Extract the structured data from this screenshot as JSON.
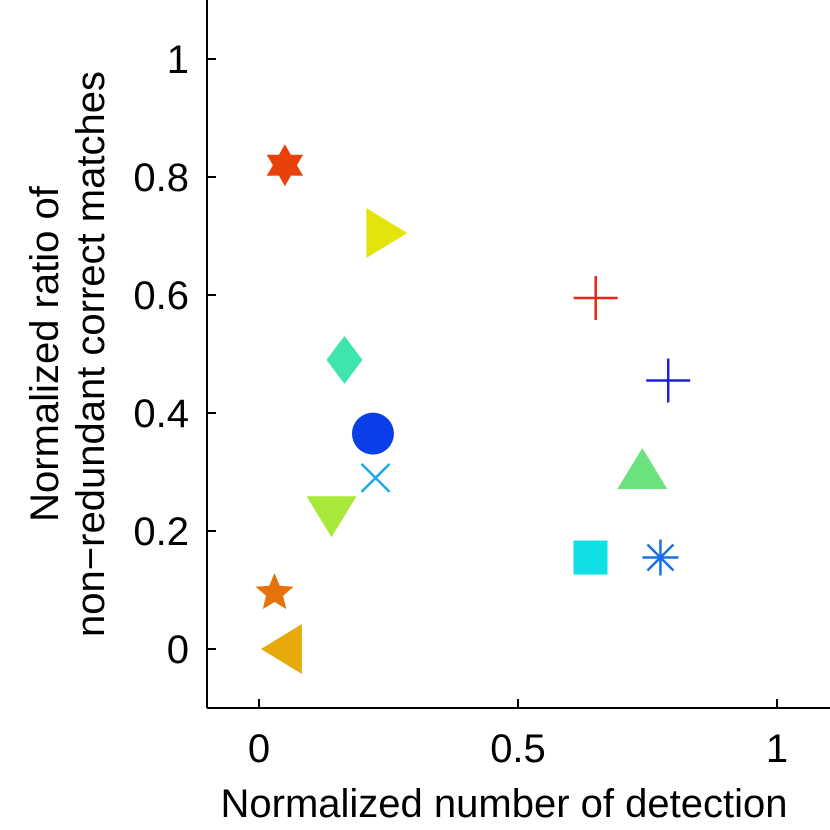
{
  "chart_data": {
    "type": "scatter",
    "title": "",
    "xlabel": "Normalized number of detection",
    "ylabel_lines": [
      "Normalized ratio of",
      "non−redundant correct matches"
    ],
    "xlim": [
      -0.1,
      1.1
    ],
    "ylim": [
      -0.1,
      1.1
    ],
    "x_ticks": [
      0,
      0.5,
      1
    ],
    "x_tick_labels": [
      "0",
      "0.5",
      "1"
    ],
    "y_ticks": [
      0,
      0.2,
      0.4,
      0.6,
      0.8,
      1
    ],
    "y_tick_labels": [
      "0",
      "0.2",
      "0.4",
      "0.6",
      "0.8",
      "1"
    ],
    "grid": false,
    "legend": "none",
    "points": [
      {
        "x": 0.05,
        "y": 0.82,
        "marker": "hexagram",
        "color": "#e8420a"
      },
      {
        "x": 0.24,
        "y": 0.705,
        "marker": "triangle-right",
        "color": "#e4e40c"
      },
      {
        "x": 0.65,
        "y": 0.595,
        "marker": "plus",
        "color": "#e8261a"
      },
      {
        "x": 0.79,
        "y": 0.455,
        "marker": "plus",
        "color": "#1c22e0"
      },
      {
        "x": 0.165,
        "y": 0.49,
        "marker": "diamond",
        "color": "#3ee6ac"
      },
      {
        "x": 0.22,
        "y": 0.365,
        "marker": "circle",
        "color": "#0a3ee8"
      },
      {
        "x": 0.225,
        "y": 0.29,
        "marker": "x",
        "color": "#1ea8ec"
      },
      {
        "x": 0.74,
        "y": 0.3,
        "marker": "triangle-up",
        "color": "#6be27e"
      },
      {
        "x": 0.14,
        "y": 0.23,
        "marker": "triangle-down",
        "color": "#a8e83a"
      },
      {
        "x": 0.64,
        "y": 0.155,
        "marker": "square",
        "color": "#0ee0e6"
      },
      {
        "x": 0.775,
        "y": 0.155,
        "marker": "asterisk",
        "color": "#1a70e6"
      },
      {
        "x": 0.03,
        "y": 0.095,
        "marker": "pentagram",
        "color": "#e6720a"
      },
      {
        "x": 0.05,
        "y": 0.0,
        "marker": "triangle-left",
        "color": "#e6aa0a"
      }
    ]
  }
}
